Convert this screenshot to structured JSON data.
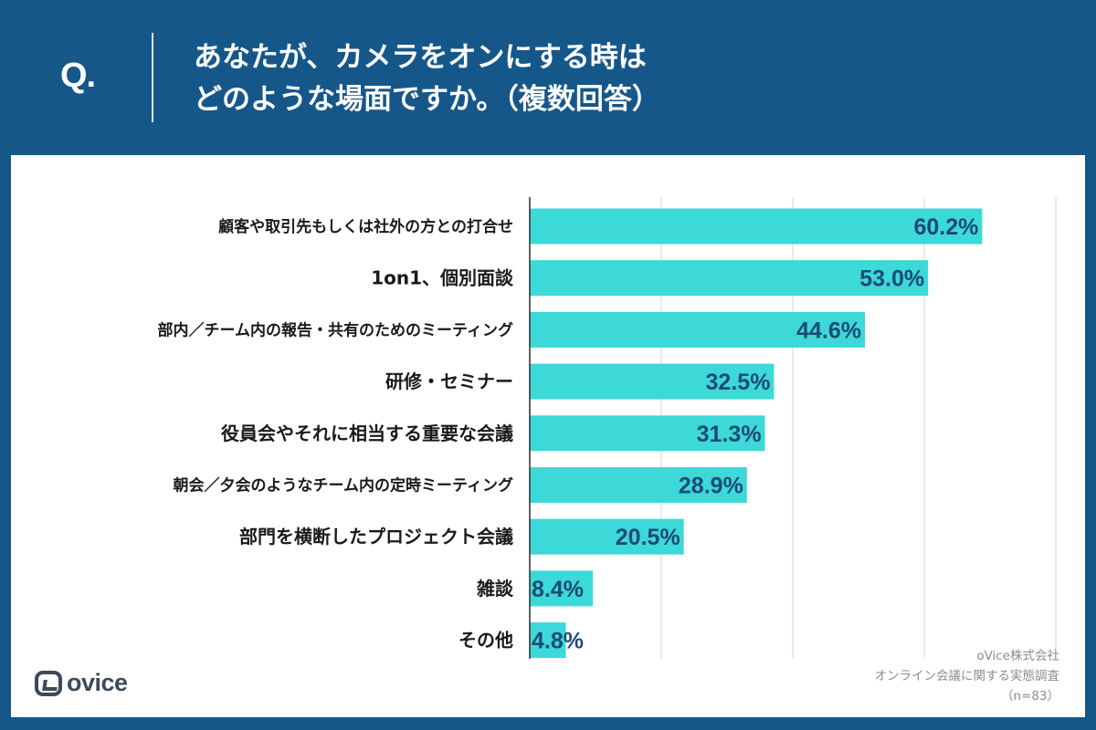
{
  "header": {
    "q_label": "Q.",
    "question_line1": "あなたが、カメラをオンにする時は",
    "question_line2": "どのような場面ですか。（複数回答）"
  },
  "chart_data": {
    "type": "bar",
    "orientation": "horizontal",
    "title": "あなたが、カメラをオンにする時は どのような場面ですか。（複数回答）",
    "categories": [
      "顧客や取引先もしくは社外の方との打合せ",
      "1on1、個別面談",
      "部内／チーム内の報告・共有のためのミーティング",
      "研修・セミナー",
      "役員会やそれに相当する重要な会議",
      "朝会／夕会のようなチーム内の定時ミーティング",
      "部門を横断したプロジェクト会議",
      "雑談",
      "その他"
    ],
    "values": [
      60.2,
      53.0,
      44.6,
      32.5,
      31.3,
      28.9,
      20.5,
      8.4,
      4.8
    ],
    "value_labels": [
      "60.2%",
      "53.0%",
      "44.6%",
      "32.5%",
      "31.3%",
      "28.9%",
      "20.5%",
      "8.4%",
      "4.8%"
    ],
    "xlim": [
      0,
      70
    ],
    "gridlines": [
      0,
      17.5,
      35,
      52.5,
      70
    ],
    "bar_color": "#3dd8d8",
    "grid": true,
    "xlabel": "",
    "ylabel": ""
  },
  "footer": {
    "logo_text": "ovice",
    "source_line1": "oVice株式会社",
    "source_line2": "オンライン会議に関する実態調査",
    "source_line3": "（n=83）"
  }
}
